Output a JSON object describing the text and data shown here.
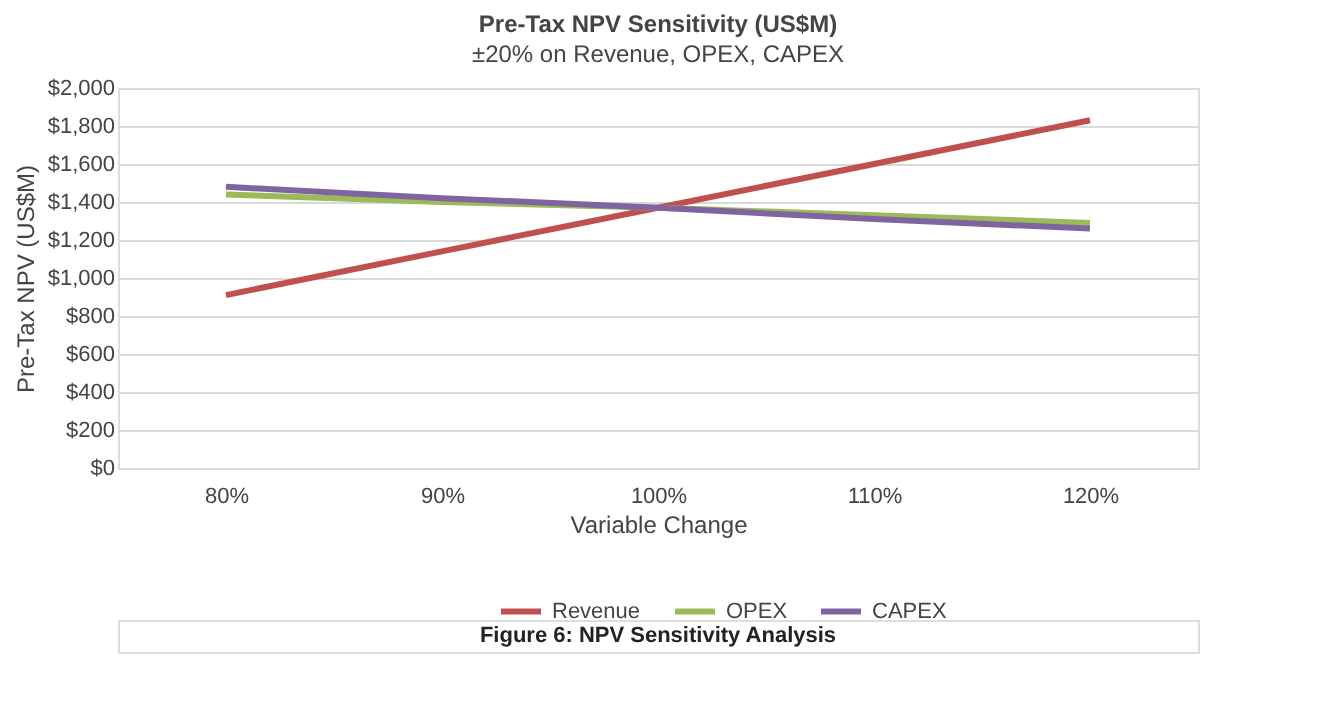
{
  "chart_data": {
    "type": "line",
    "title": "Pre-Tax NPV Sensitivity (US$M)",
    "subtitle": "±20% on Revenue, OPEX, CAPEX",
    "xlabel": "Variable Change",
    "ylabel": "Pre-Tax NPV (US$M)",
    "categories": [
      "80%",
      "90%",
      "100%",
      "110%",
      "120%"
    ],
    "series": [
      {
        "name": "Revenue",
        "color": "#c0504d",
        "values": [
          910,
          1140,
          1370,
          1600,
          1830
        ]
      },
      {
        "name": "OPEX",
        "color": "#9bbb59",
        "values": [
          1440,
          1400,
          1370,
          1330,
          1290
        ]
      },
      {
        "name": "CAPEX",
        "color": "#8064a2",
        "values": [
          1480,
          1420,
          1370,
          1310,
          1260
        ]
      }
    ],
    "ylim": [
      0,
      2000
    ],
    "yticks": [
      {
        "value": 0,
        "label": "$0"
      },
      {
        "value": 200,
        "label": "$200"
      },
      {
        "value": 400,
        "label": "$400"
      },
      {
        "value": 600,
        "label": "$600"
      },
      {
        "value": 800,
        "label": "$800"
      },
      {
        "value": 1000,
        "label": "$1,000"
      },
      {
        "value": 1200,
        "label": "$1,200"
      },
      {
        "value": 1400,
        "label": "$1,400"
      },
      {
        "value": 1600,
        "label": "$1,600"
      },
      {
        "value": 1800,
        "label": "$1,800"
      },
      {
        "value": 2000,
        "label": "$2,000"
      }
    ],
    "grid": "y",
    "legend": "bottom",
    "marker": "none",
    "line_style": "solid",
    "annotations": [
      "Figure 6: NPV Sensitivity Analysis"
    ]
  }
}
